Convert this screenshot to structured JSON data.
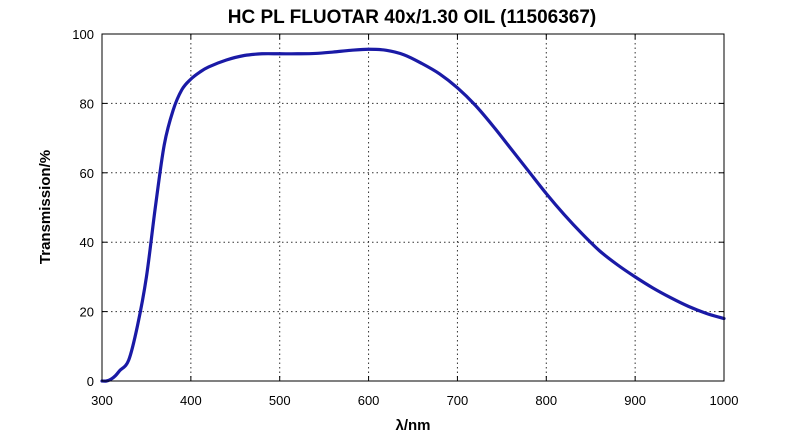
{
  "chart_data": {
    "type": "line",
    "title": "HC PL FLUOTAR 40x/1.30 OIL (11506367)",
    "xlabel": "λ/nm",
    "ylabel": "Transmission/%",
    "xlim": [
      300,
      1000
    ],
    "ylim": [
      0,
      100
    ],
    "xticks": [
      300,
      400,
      500,
      600,
      700,
      800,
      900,
      1000
    ],
    "yticks": [
      0,
      20,
      40,
      60,
      80,
      100
    ],
    "grid": true,
    "line_color": "#1a1aa6",
    "series": [
      {
        "x": [
          300,
          305,
          310,
          315,
          320,
          330,
          340,
          350,
          360,
          370,
          380,
          390,
          400,
          410,
          420,
          440,
          460,
          480,
          500,
          520,
          540,
          560,
          580,
          600,
          620,
          640,
          660,
          680,
          700,
          720,
          740,
          760,
          780,
          800,
          820,
          840,
          860,
          880,
          900,
          920,
          940,
          960,
          980,
          1000
        ],
        "y": [
          0,
          0,
          0.5,
          1.5,
          3,
          6,
          16,
          30,
          50,
          68,
          78,
          84,
          87,
          89,
          90.5,
          92.5,
          93.8,
          94.3,
          94.3,
          94.3,
          94.4,
          94.8,
          95.3,
          95.6,
          95.3,
          94,
          91.5,
          88.5,
          84.5,
          79.5,
          73.5,
          67,
          60.5,
          54,
          48,
          42.5,
          37.5,
          33.5,
          30,
          26.8,
          24,
          21.5,
          19.5,
          18
        ]
      }
    ]
  }
}
